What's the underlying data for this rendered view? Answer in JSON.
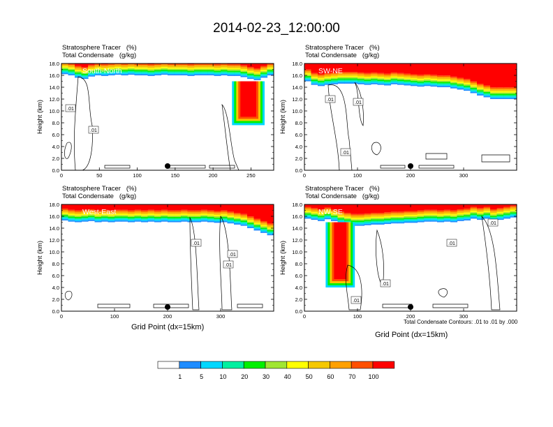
{
  "figure_title": "2014-02-23_12:00:00",
  "panel_header_line1": "Stratosphere Tracer   (%)",
  "panel_header_line2": "Total Condensate   (g/kg)",
  "contour_note": "Total Condensate Contours: .01 to .01 by .000",
  "colors": {
    "levels": [
      "#ffffff",
      "#1e8cff",
      "#00d7ff",
      "#00f0a0",
      "#00f000",
      "#a0e632",
      "#ffff00",
      "#f5c800",
      "#ffa000",
      "#ff5000",
      "#ff0000"
    ],
    "contour_line": "#000000",
    "marker": "#000000"
  },
  "colorbar": {
    "boundaries": [
      1,
      5,
      10,
      20,
      30,
      40,
      50,
      60,
      70,
      100
    ],
    "labels": [
      "1",
      "5",
      "10",
      "20",
      "30",
      "40",
      "50",
      "60",
      "70",
      "100"
    ]
  },
  "chart_data": [
    {
      "type": "heatmap",
      "panel_label": "South-North",
      "xlabel": "",
      "ylabel": "Height (km)",
      "xlim": [
        0,
        280
      ],
      "ylim": [
        0,
        18
      ],
      "xticks": [
        0,
        50,
        100,
        150,
        200,
        250
      ],
      "yticks": [
        "0.0",
        "2.0",
        "4.0",
        "6.0",
        "8.0",
        "10.0",
        "12.0",
        "14.0",
        "16.0",
        "18.0"
      ],
      "contour_labels": [
        ".01",
        ".01"
      ],
      "marker_x": 140,
      "tracer_base_km": [
        16.2,
        16.0,
        15.6,
        15.4,
        15.8,
        16.0,
        15.9,
        16.0,
        16.1,
        16.0,
        16.1,
        16.0,
        16.0,
        15.9,
        16.0,
        16.1,
        16.0,
        16.0,
        16.0,
        15.9,
        16.0,
        16.0,
        16.0,
        15.9,
        16.0,
        15.9,
        15.9,
        15.7,
        15.4,
        15.2,
        15.6,
        16.0
      ],
      "tracer_intrusion": {
        "x_range": [
          225,
          268
        ],
        "min_height_km": 7.6
      }
    },
    {
      "type": "heatmap",
      "panel_label": "SW-NE",
      "xlabel": "",
      "ylabel": "Height (km)",
      "xlim": [
        0,
        400
      ],
      "ylim": [
        0,
        18
      ],
      "xticks": [
        0,
        100,
        200,
        300
      ],
      "yticks": [
        "0.0",
        "2.0",
        "4.0",
        "6.0",
        "8.0",
        "10.0",
        "12.0",
        "14.0",
        "16.0",
        "18.0"
      ],
      "contour_labels": [
        ".01",
        ".01",
        ".01"
      ],
      "marker_x": 200,
      "tracer_base_km": [
        15.0,
        14.4,
        14.2,
        14.4,
        14.5,
        14.6,
        14.6,
        14.6,
        14.5,
        14.4,
        14.5,
        14.4,
        14.3,
        14.5,
        14.4,
        14.3,
        14.2,
        14.1,
        14.2,
        14.1,
        14.0,
        14.0,
        13.8,
        13.6,
        13.4,
        13.0,
        12.6,
        12.3,
        12.0,
        12.0,
        12.0,
        12.0
      ]
    },
    {
      "type": "heatmap",
      "panel_label": "West-East",
      "xlabel": "Grid Point (dx=15km)",
      "ylabel": "Height (km)",
      "xlim": [
        0,
        400
      ],
      "ylim": [
        0,
        18
      ],
      "xticks": [
        0,
        100,
        200,
        300
      ],
      "yticks": [
        "0.0",
        "2.0",
        "4.0",
        "6.0",
        "8.0",
        "10.0",
        "12.0",
        "14.0",
        "16.0",
        "18.0"
      ],
      "contour_labels": [
        ".01",
        ".01",
        ".01"
      ],
      "marker_x": 200,
      "tracer_base_km": [
        15.3,
        15.1,
        15.0,
        15.1,
        15.2,
        15.0,
        15.1,
        15.0,
        15.1,
        15.1,
        15.0,
        15.1,
        15.0,
        15.1,
        15.0,
        15.1,
        15.0,
        15.0,
        15.1,
        15.0,
        15.0,
        15.1,
        15.0,
        14.9,
        15.0,
        14.8,
        14.6,
        14.4,
        14.0,
        13.6,
        13.2,
        12.8
      ]
    },
    {
      "type": "heatmap",
      "panel_label": "NW-SE",
      "xlabel": "Grid Point (dx=15km)",
      "ylabel": "Height (km)",
      "xlim": [
        0,
        400
      ],
      "ylim": [
        0,
        18
      ],
      "xticks": [
        0,
        100,
        200,
        300
      ],
      "yticks": [
        "0.0",
        "2.0",
        "4.0",
        "6.0",
        "8.0",
        "10.0",
        "12.0",
        "14.0",
        "16.0",
        "18.0"
      ],
      "contour_labels": [
        ".01",
        ".01",
        ".01",
        ".01"
      ],
      "marker_x": 200,
      "tracer_base_km": [
        15.6,
        15.4,
        15.2,
        15.5,
        15.2,
        14.8,
        14.6,
        14.4,
        14.4,
        14.5,
        14.6,
        14.6,
        14.7,
        14.8,
        14.8,
        14.9,
        14.9,
        15.0,
        15.1,
        15.1,
        15.0,
        15.1,
        15.0,
        15.2,
        15.3,
        15.6,
        15.4,
        15.6,
        15.2,
        15.4,
        15.6,
        15.8
      ],
      "tracer_intrusion": {
        "x_range": [
          40,
          95
        ],
        "min_height_km": 4.0
      }
    }
  ]
}
